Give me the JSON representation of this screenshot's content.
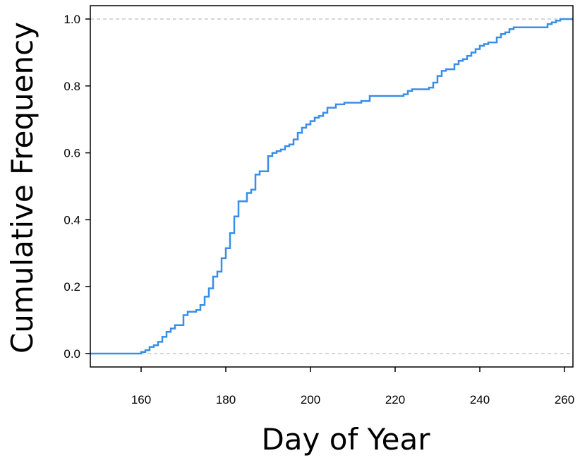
{
  "chart_data": {
    "type": "line",
    "step": true,
    "title": "",
    "xlabel": "Day of Year",
    "ylabel": "Cumulative Frequency",
    "xlim": [
      148,
      262
    ],
    "ylim": [
      -0.04,
      1.04
    ],
    "x_ticks": [
      "160",
      "180",
      "200",
      "220",
      "240",
      "260"
    ],
    "y_ticks": [
      "0.0",
      "0.2",
      "0.4",
      "0.6",
      "0.8",
      "1.0"
    ],
    "reference_lines": [
      0,
      1
    ],
    "line_color": "#3a8ee6",
    "reference_line_color": "#c8c8c8",
    "grid": false,
    "series": [
      {
        "x": [
          148,
          159,
          160,
          161,
          162,
          163,
          164,
          165,
          166,
          167,
          168,
          169,
          170,
          171,
          172,
          173,
          174,
          175,
          176,
          177,
          178,
          179,
          180,
          181,
          182,
          183,
          184,
          185,
          186,
          187,
          188,
          189,
          190,
          191,
          192,
          193,
          194,
          195,
          196,
          197,
          198,
          199,
          200,
          201,
          202,
          203,
          204,
          205,
          206,
          208,
          209,
          210,
          212,
          214,
          218,
          222,
          223,
          224,
          226,
          228,
          229,
          230,
          231,
          232,
          234,
          235,
          236,
          237,
          238,
          239,
          240,
          241,
          242,
          244,
          245,
          246,
          247,
          248,
          250,
          252,
          255,
          256,
          257,
          258,
          259,
          262
        ],
        "y": [
          0.0,
          0.0,
          0.005,
          0.01,
          0.02,
          0.025,
          0.035,
          0.05,
          0.065,
          0.075,
          0.085,
          0.085,
          0.115,
          0.125,
          0.125,
          0.13,
          0.145,
          0.17,
          0.195,
          0.23,
          0.245,
          0.285,
          0.315,
          0.36,
          0.41,
          0.455,
          0.455,
          0.48,
          0.49,
          0.535,
          0.545,
          0.545,
          0.59,
          0.6,
          0.605,
          0.61,
          0.62,
          0.625,
          0.64,
          0.66,
          0.675,
          0.685,
          0.695,
          0.705,
          0.71,
          0.72,
          0.735,
          0.735,
          0.745,
          0.75,
          0.75,
          0.75,
          0.755,
          0.77,
          0.77,
          0.775,
          0.785,
          0.79,
          0.79,
          0.795,
          0.81,
          0.83,
          0.845,
          0.85,
          0.865,
          0.875,
          0.88,
          0.89,
          0.9,
          0.91,
          0.92,
          0.925,
          0.93,
          0.945,
          0.955,
          0.96,
          0.97,
          0.975,
          0.975,
          0.975,
          0.975,
          0.985,
          0.99,
          0.995,
          1.0,
          1.0
        ]
      }
    ]
  }
}
